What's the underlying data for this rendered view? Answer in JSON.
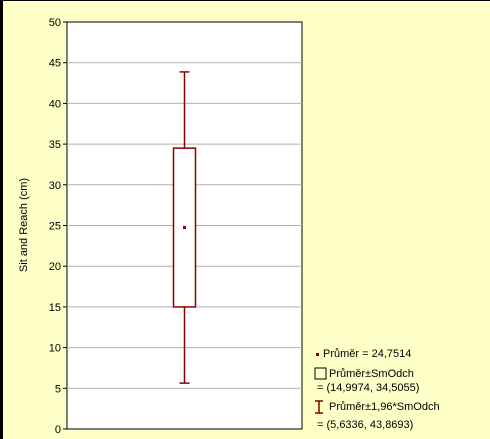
{
  "chart_data": {
    "type": "box",
    "ylabel": "Sit and Reach (cm)",
    "ylim": [
      0,
      50
    ],
    "yticks": [
      "0",
      "5",
      "10",
      "15",
      "20",
      "25",
      "30",
      "35",
      "40",
      "45",
      "50"
    ],
    "grid": true,
    "mean": 24.7514,
    "box": [
      14.9974,
      34.5055
    ],
    "whiskers": [
      5.6336,
      43.8693
    ],
    "legend": {
      "placement": "bottom-right",
      "mean_label": "Průměr = 24,7514",
      "box_label_1": "Průměr±SmOdch",
      "box_label_2": "= (14,9974, 34,5055)",
      "whisker_label_1": "Průměr±1,96*SmOdch",
      "whisker_label_2": "= (5,6336, 43,8693)"
    },
    "colors": {
      "background": "#ffffc8",
      "plot_area": "#ffffff",
      "series": "#8b0000"
    }
  }
}
